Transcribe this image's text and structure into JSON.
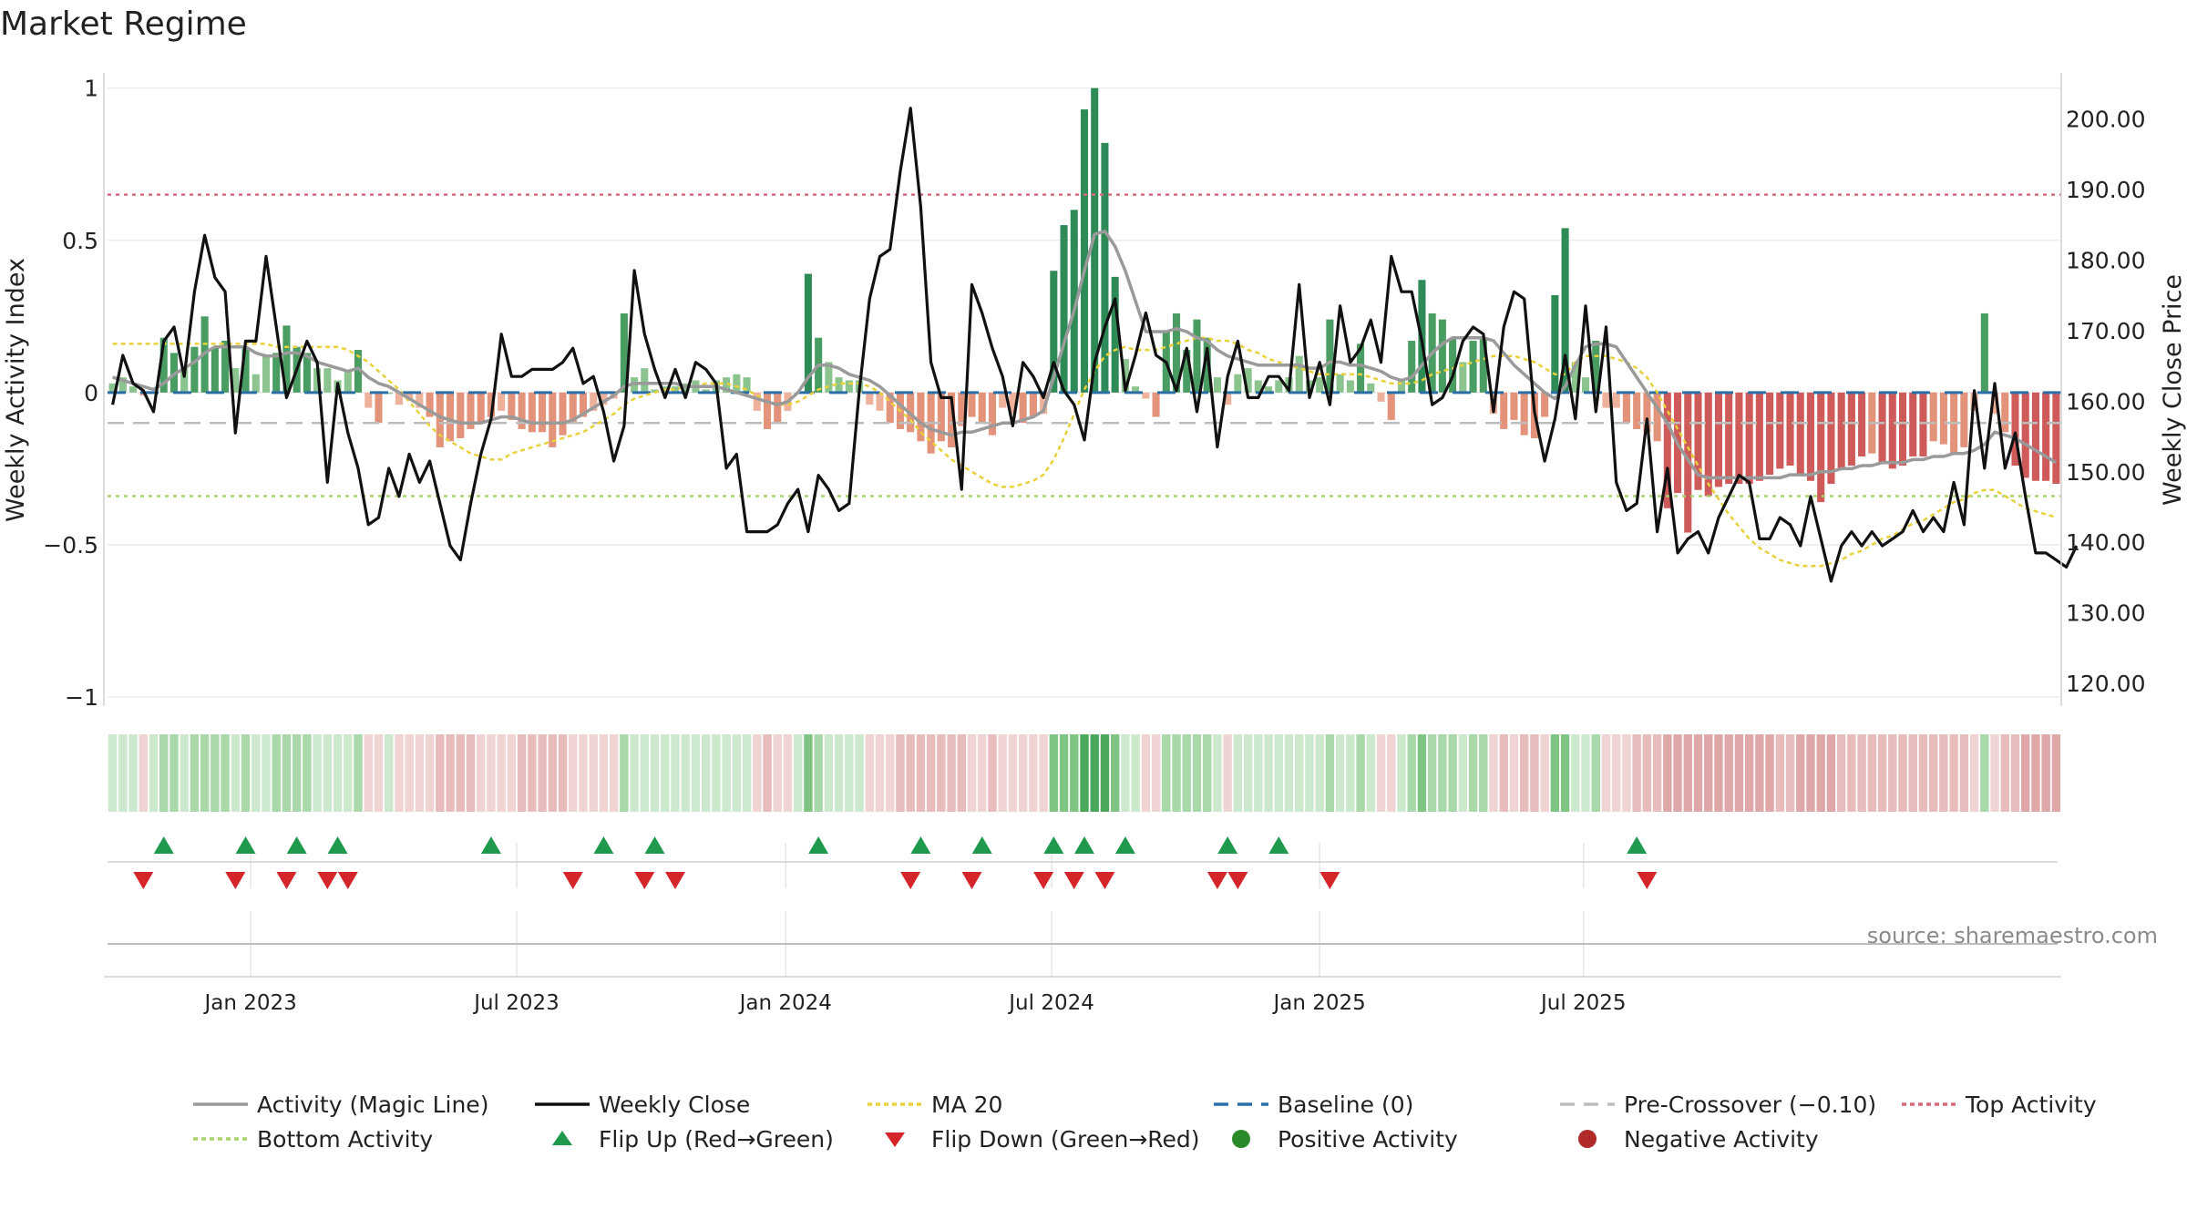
{
  "chart_data": {
    "type": "bar+line",
    "title": "Market Regime",
    "ylabel_left": "Weekly Activity Index",
    "ylabel_right": "Weekly Close Price",
    "left_ylim": [
      -1.03,
      1.05
    ],
    "right_ylim": [
      116.8,
      206.5
    ],
    "left_ticks": [
      "1",
      "0.5",
      "0",
      "−0.5",
      "−1"
    ],
    "left_tick_values": [
      1,
      0.5,
      0,
      -0.5,
      -1
    ],
    "right_ticks": [
      "200.00",
      "190.00",
      "180.00",
      "170.00",
      "160.00",
      "150.00",
      "140.00",
      "130.00",
      "120.00"
    ],
    "right_tick_values": [
      200,
      190,
      180,
      170,
      160,
      150,
      140,
      130,
      120
    ],
    "x_ticks": [
      "Jan 2023",
      "Jul 2023",
      "Jan 2024",
      "Jul 2024",
      "Jan 2025",
      "Jul 2025"
    ],
    "x_tick_weeks": [
      14,
      40,
      66.3,
      92.3,
      118.5,
      144.3
    ],
    "top_activity": 0.65,
    "bottom_activity": -0.34,
    "pre_crossover": -0.1,
    "baseline": 0,
    "activity": [
      0.03,
      0.05,
      0.02,
      -0.01,
      0.0,
      0.18,
      0.13,
      0.08,
      0.15,
      0.25,
      0.15,
      0.17,
      0.08,
      0.15,
      0.06,
      0.12,
      0.13,
      0.22,
      0.15,
      0.13,
      0.08,
      0.08,
      0.04,
      0.07,
      0.14,
      -0.05,
      -0.1,
      0.0,
      -0.04,
      -0.02,
      -0.05,
      -0.08,
      -0.18,
      -0.16,
      -0.15,
      -0.12,
      -0.1,
      -0.08,
      -0.06,
      -0.09,
      -0.12,
      -0.13,
      -0.13,
      -0.18,
      -0.14,
      -0.1,
      -0.08,
      -0.06,
      -0.04,
      -0.02,
      0.26,
      0.05,
      0.08,
      0.01,
      0.02,
      0.02,
      0.03,
      0.04,
      0.01,
      0.04,
      0.05,
      0.06,
      0.05,
      -0.06,
      -0.12,
      -0.1,
      -0.06,
      0.0,
      0.39,
      0.18,
      0.1,
      0.05,
      0.04,
      0.04,
      -0.04,
      -0.06,
      -0.1,
      -0.12,
      -0.13,
      -0.16,
      -0.2,
      -0.16,
      -0.18,
      -0.11,
      -0.08,
      -0.1,
      -0.14,
      -0.05,
      -0.07,
      -0.1,
      -0.08,
      -0.07,
      0.4,
      0.55,
      0.6,
      0.93,
      1.0,
      0.82,
      0.38,
      0.11,
      0.02,
      -0.02,
      -0.08,
      0.2,
      0.26,
      0.14,
      0.24,
      0.18,
      0.05,
      -0.04,
      0.06,
      0.08,
      0.04,
      0.02,
      0.04,
      0.05,
      0.12,
      0.04,
      0.05,
      0.24,
      0.06,
      0.04,
      0.16,
      0.03,
      -0.03,
      -0.09,
      0.04,
      0.17,
      0.37,
      0.26,
      0.24,
      0.18,
      0.1,
      0.17,
      0.18,
      -0.07,
      -0.12,
      -0.09,
      -0.14,
      -0.15,
      -0.08,
      0.32,
      0.54,
      0.1,
      0.05,
      0.17,
      -0.05,
      -0.05,
      -0.1,
      -0.12,
      -0.13,
      -0.16,
      -0.38,
      -0.33,
      -0.46,
      -0.32,
      -0.34,
      -0.31,
      -0.3,
      -0.3,
      -0.3,
      -0.29,
      -0.27,
      -0.25,
      -0.24,
      -0.27,
      -0.29,
      -0.36,
      -0.3,
      -0.25,
      -0.24,
      -0.21,
      -0.2,
      -0.23,
      -0.25,
      -0.24,
      -0.21,
      -0.21,
      -0.16,
      -0.17,
      -0.2,
      -0.18,
      -0.06,
      0.26,
      -0.07,
      -0.13,
      -0.24,
      -0.28,
      -0.29,
      -0.29,
      -0.3
    ],
    "magic_line": [
      0.05,
      0.04,
      0.03,
      0.02,
      0.01,
      0.03,
      0.06,
      0.08,
      0.1,
      0.13,
      0.15,
      0.15,
      0.15,
      0.15,
      0.13,
      0.12,
      0.12,
      0.13,
      0.13,
      0.12,
      0.1,
      0.09,
      0.08,
      0.07,
      0.08,
      0.05,
      0.03,
      0.02,
      0.0,
      -0.02,
      -0.04,
      -0.06,
      -0.08,
      -0.09,
      -0.1,
      -0.1,
      -0.1,
      -0.09,
      -0.08,
      -0.08,
      -0.09,
      -0.1,
      -0.1,
      -0.1,
      -0.1,
      -0.09,
      -0.07,
      -0.05,
      -0.03,
      -0.01,
      0.02,
      0.03,
      0.03,
      0.03,
      0.03,
      0.03,
      0.02,
      0.02,
      0.02,
      0.02,
      0.01,
      0.0,
      -0.01,
      -0.02,
      -0.03,
      -0.04,
      -0.03,
      0.0,
      0.05,
      0.09,
      0.09,
      0.08,
      0.06,
      0.05,
      0.04,
      0.02,
      -0.01,
      -0.04,
      -0.07,
      -0.1,
      -0.12,
      -0.13,
      -0.14,
      -0.13,
      -0.13,
      -0.12,
      -0.11,
      -0.1,
      -0.1,
      -0.09,
      -0.08,
      -0.06,
      0.05,
      0.16,
      0.27,
      0.4,
      0.52,
      0.53,
      0.48,
      0.4,
      0.3,
      0.2,
      0.2,
      0.2,
      0.21,
      0.2,
      0.18,
      0.17,
      0.14,
      0.12,
      0.11,
      0.1,
      0.09,
      0.09,
      0.09,
      0.09,
      0.09,
      0.08,
      0.08,
      0.1,
      0.1,
      0.09,
      0.09,
      0.08,
      0.07,
      0.05,
      0.04,
      0.05,
      0.09,
      0.13,
      0.16,
      0.18,
      0.18,
      0.18,
      0.18,
      0.17,
      0.13,
      0.09,
      0.06,
      0.03,
      0.0,
      -0.02,
      0.02,
      0.09,
      0.15,
      0.16,
      0.16,
      0.15,
      0.1,
      0.05,
      0.0,
      -0.05,
      -0.1,
      -0.17,
      -0.22,
      -0.27,
      -0.28,
      -0.28,
      -0.28,
      -0.28,
      -0.28,
      -0.28,
      -0.28,
      -0.28,
      -0.27,
      -0.27,
      -0.27,
      -0.26,
      -0.26,
      -0.25,
      -0.25,
      -0.24,
      -0.24,
      -0.23,
      -0.23,
      -0.23,
      -0.22,
      -0.22,
      -0.21,
      -0.21,
      -0.2,
      -0.2,
      -0.19,
      -0.17,
      -0.13,
      -0.14,
      -0.15,
      -0.17,
      -0.19,
      -0.21,
      -0.23
    ],
    "ma20": [
      0.16,
      0.16,
      0.16,
      0.16,
      0.16,
      0.16,
      0.16,
      0.16,
      0.16,
      0.16,
      0.16,
      0.16,
      0.16,
      0.16,
      0.16,
      0.16,
      0.15,
      0.15,
      0.15,
      0.15,
      0.15,
      0.15,
      0.15,
      0.14,
      0.12,
      0.1,
      0.07,
      0.04,
      0.01,
      -0.03,
      -0.07,
      -0.11,
      -0.14,
      -0.16,
      -0.18,
      -0.2,
      -0.21,
      -0.22,
      -0.22,
      -0.2,
      -0.19,
      -0.18,
      -0.17,
      -0.16,
      -0.15,
      -0.14,
      -0.13,
      -0.11,
      -0.09,
      -0.07,
      -0.04,
      -0.02,
      -0.01,
      0.0,
      0.01,
      0.01,
      0.02,
      0.02,
      0.03,
      0.03,
      0.03,
      0.02,
      0.01,
      -0.01,
      -0.03,
      -0.04,
      -0.04,
      -0.03,
      -0.01,
      0.01,
      0.02,
      0.03,
      0.03,
      0.03,
      0.02,
      0.0,
      -0.03,
      -0.06,
      -0.09,
      -0.13,
      -0.16,
      -0.19,
      -0.22,
      -0.24,
      -0.26,
      -0.28,
      -0.3,
      -0.31,
      -0.31,
      -0.3,
      -0.29,
      -0.27,
      -0.22,
      -0.15,
      -0.07,
      0.01,
      0.07,
      0.12,
      0.14,
      0.15,
      0.14,
      0.14,
      0.14,
      0.15,
      0.16,
      0.17,
      0.18,
      0.18,
      0.17,
      0.17,
      0.16,
      0.14,
      0.13,
      0.11,
      0.1,
      0.09,
      0.08,
      0.07,
      0.06,
      0.06,
      0.06,
      0.06,
      0.06,
      0.05,
      0.04,
      0.03,
      0.03,
      0.03,
      0.04,
      0.06,
      0.07,
      0.08,
      0.09,
      0.1,
      0.11,
      0.12,
      0.12,
      0.12,
      0.11,
      0.1,
      0.08,
      0.06,
      0.06,
      0.1,
      0.12,
      0.12,
      0.12,
      0.11,
      0.1,
      0.08,
      0.05,
      0.0,
      -0.06,
      -0.12,
      -0.18,
      -0.24,
      -0.3,
      -0.35,
      -0.4,
      -0.44,
      -0.48,
      -0.51,
      -0.53,
      -0.55,
      -0.56,
      -0.57,
      -0.57,
      -0.57,
      -0.56,
      -0.55,
      -0.53,
      -0.52,
      -0.5,
      -0.48,
      -0.47,
      -0.45,
      -0.43,
      -0.42,
      -0.4,
      -0.38,
      -0.36,
      -0.35,
      -0.33,
      -0.32,
      -0.32,
      -0.34,
      -0.36,
      -0.38,
      -0.39,
      -0.4,
      -0.41
    ],
    "weekly_close": [
      159.5,
      166.5,
      162.5,
      161.5,
      158.5,
      168.5,
      170.5,
      163.5,
      175.5,
      183.5,
      177.5,
      175.5,
      155.5,
      168.5,
      168.5,
      180.5,
      170.5,
      160.5,
      164.5,
      168.5,
      165.5,
      148.5,
      162.5,
      155.5,
      150.5,
      142.5,
      143.5,
      150.5,
      146.5,
      152.5,
      148.5,
      151.5,
      145.5,
      139.5,
      137.5,
      145.5,
      152.5,
      157.5,
      169.5,
      163.5,
      163.5,
      164.5,
      164.5,
      164.5,
      165.5,
      167.5,
      162.5,
      163.5,
      158.5,
      151.5,
      156.5,
      178.5,
      169.5,
      164.5,
      160.5,
      164.5,
      160.5,
      165.5,
      164.5,
      162.5,
      150.5,
      152.5,
      141.5,
      141.5,
      141.5,
      142.5,
      145.5,
      147.5,
      141.5,
      149.5,
      147.5,
      144.5,
      145.5,
      161.5,
      174.5,
      180.5,
      181.5,
      192.5,
      201.5,
      187.5,
      165.5,
      160.5,
      160.5,
      147.5,
      176.5,
      172.5,
      167.5,
      163.5,
      156.5,
      165.5,
      163.5,
      160.5,
      165.5,
      161.5,
      159.5,
      154.5,
      165.5,
      170.5,
      174.5,
      161.5,
      166.5,
      172.5,
      166.5,
      165.5,
      161.5,
      167.5,
      158.5,
      167.5,
      153.5,
      163.5,
      168.5,
      160.5,
      160.5,
      163.5,
      163.5,
      161.5,
      176.5,
      160.5,
      165.5,
      159.5,
      173.5,
      165.5,
      167.5,
      171.5,
      165.5,
      180.5,
      175.5,
      175.5,
      168.5,
      159.5,
      160.5,
      163.5,
      168.5,
      170.5,
      169.5,
      158.5,
      170.5,
      175.5,
      174.5,
      158.5,
      151.5,
      157.5,
      166.5,
      157.5,
      173.5,
      158.5,
      170.5,
      148.5,
      144.5,
      145.5,
      157.5,
      141.5,
      150.5,
      138.5,
      140.5,
      141.5,
      138.5,
      143.5,
      146.5,
      149.5,
      148.5,
      140.5,
      140.5,
      143.5,
      142.5,
      139.5,
      146.5,
      140.5,
      134.5,
      139.5,
      141.5,
      139.5,
      141.5,
      139.5,
      140.5,
      141.5,
      144.5,
      141.5,
      143.5,
      141.5,
      148.5,
      142.5,
      161.5,
      150.5,
      162.5,
      150.5,
      155.5,
      146.5,
      138.5,
      138.5,
      137.5,
      136.5,
      139.5
    ],
    "flip_up_weeks": [
      5,
      13,
      18,
      22,
      37,
      48,
      53,
      69,
      79,
      85,
      92,
      95,
      99,
      109,
      114,
      149
    ],
    "flip_down_weeks": [
      3,
      12,
      17,
      21,
      23,
      45,
      52,
      55,
      78,
      84,
      91,
      94,
      97,
      108,
      110,
      119,
      150
    ],
    "legend": [
      {
        "key": "activity",
        "label": "Activity (Magic Line)",
        "color": "#9a9a9a"
      },
      {
        "key": "close",
        "label": "Weekly Close",
        "color": "#111111"
      },
      {
        "key": "ma20",
        "label": "MA 20",
        "color": "#e8d13a"
      },
      {
        "key": "baseline",
        "label": "Baseline (0)",
        "color": "#2a6fa8"
      },
      {
        "key": "pre",
        "label": "Pre-Crossover (−0.10)",
        "color": "#bdbdbd"
      },
      {
        "key": "top",
        "label": "Top Activity",
        "color": "#d86a7c"
      },
      {
        "key": "bottom",
        "label": "Bottom Activity",
        "color": "#a8d36f"
      },
      {
        "key": "flipup",
        "label": "Flip Up (Red→Green)",
        "color": "#1f9a4d"
      },
      {
        "key": "flipdown",
        "label": "Flip Down (Green→Red)",
        "color": "#d4252b"
      },
      {
        "key": "pos",
        "label": "Positive Activity",
        "color": "#2a8a2a"
      },
      {
        "key": "neg",
        "label": "Negative Activity",
        "color": "#b02a2a"
      }
    ],
    "source": "source: sharemaestro.com"
  }
}
